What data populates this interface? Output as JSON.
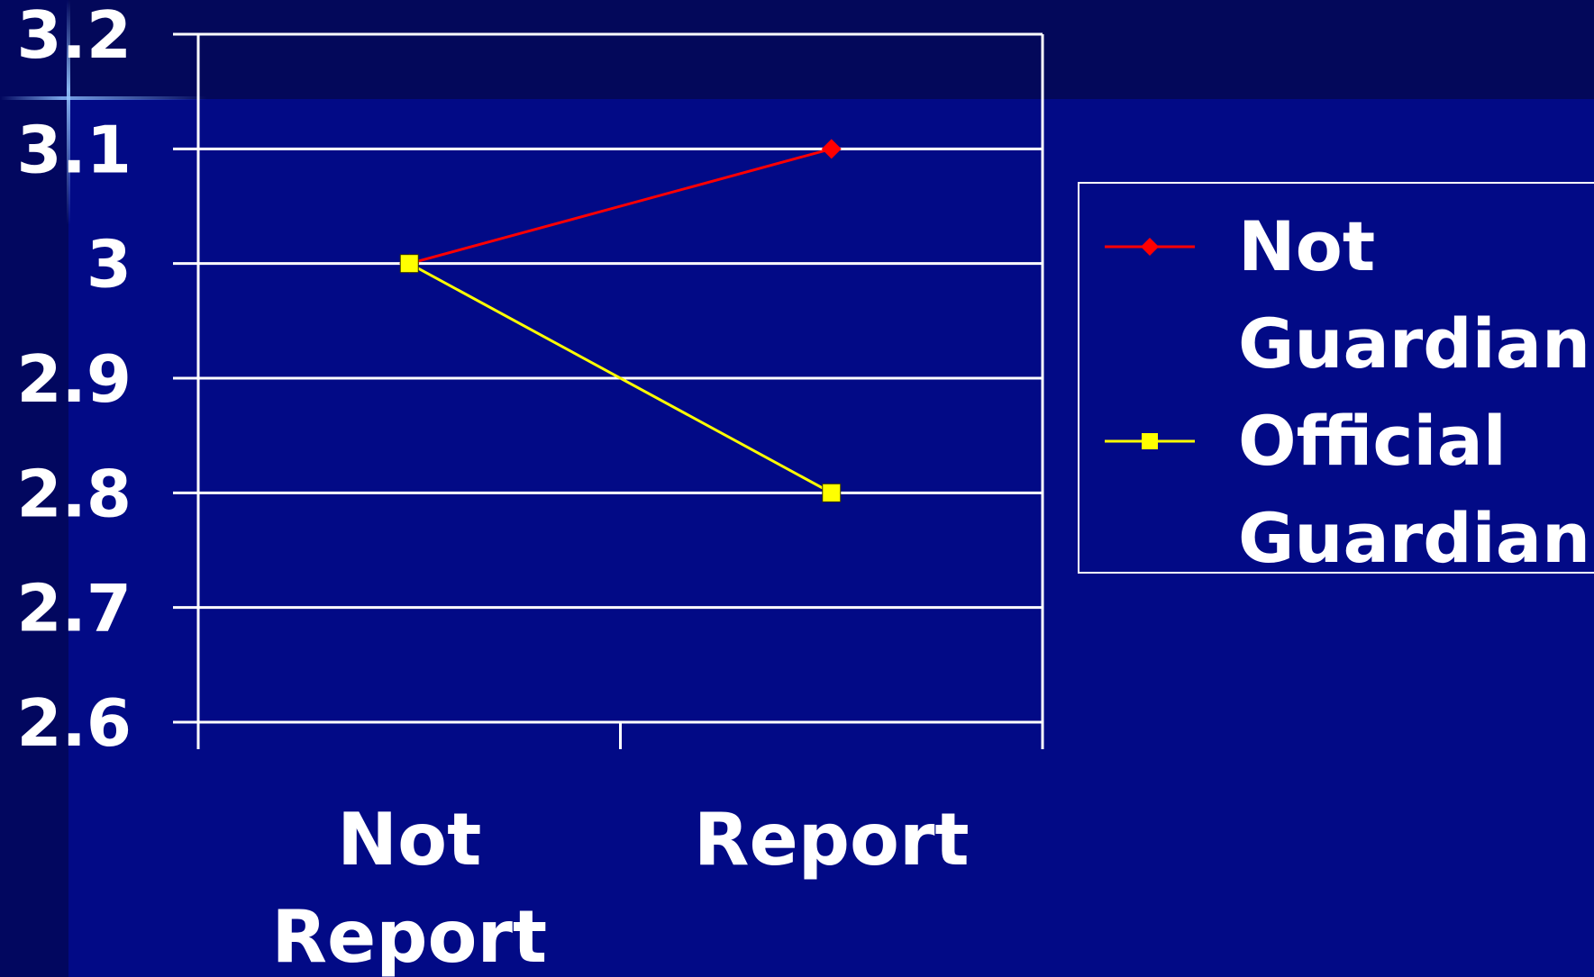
{
  "chart_data": {
    "type": "line",
    "categories": [
      "Not Report",
      "Report"
    ],
    "series": [
      {
        "name": "Not Guardian",
        "values": [
          3.0,
          3.1
        ],
        "color": "#ff0000",
        "marker": "diamond"
      },
      {
        "name": "Official Guardian",
        "values": [
          3.0,
          2.8
        ],
        "color": "#ffff00",
        "marker": "square"
      }
    ],
    "ylim": [
      2.6,
      3.2
    ],
    "yticks": [
      3.2,
      3.1,
      3.0,
      2.9,
      2.8,
      2.7,
      2.6
    ],
    "ytick_labels": [
      "3.2",
      "3.1",
      "3",
      "2.9",
      "2.8",
      "2.7",
      "2.6"
    ],
    "grid": true,
    "legend_position": "right",
    "title": "",
    "xlabel": "",
    "ylabel": ""
  },
  "colors": {
    "background": "#020a86",
    "gridlines": "#ffffff",
    "text": "#ffffff"
  },
  "legend": {
    "items": [
      {
        "line1": "Not",
        "line2": "Guardian"
      },
      {
        "line1": "Official",
        "line2": "Guardian"
      }
    ]
  }
}
